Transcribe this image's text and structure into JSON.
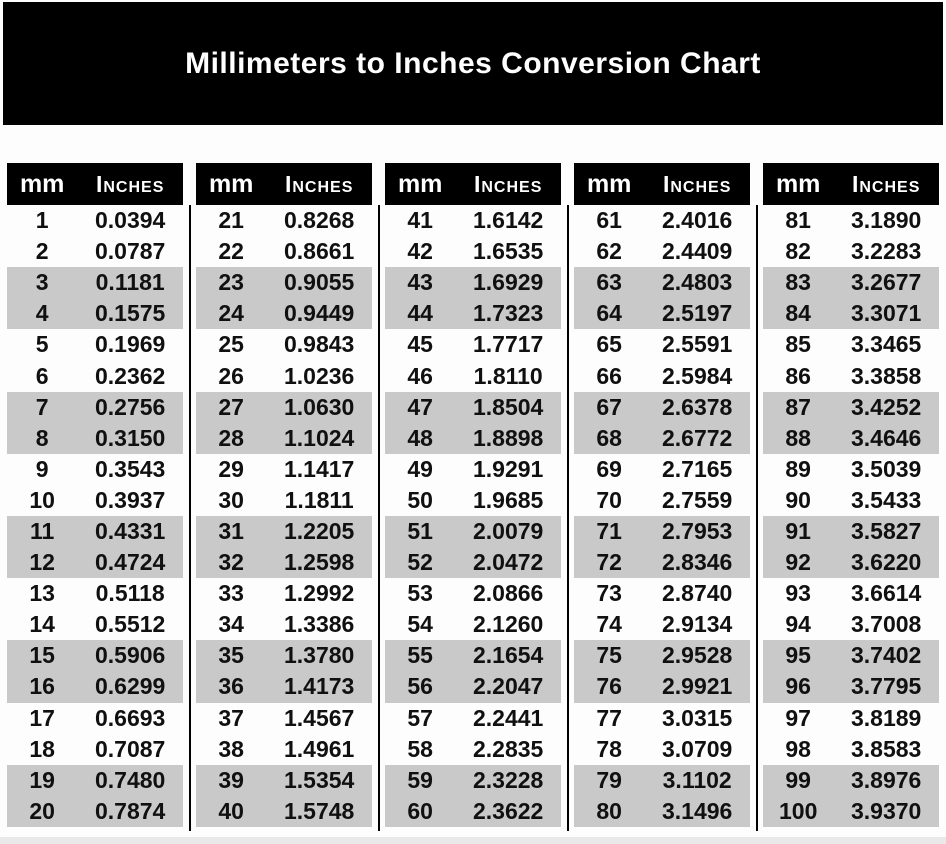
{
  "title": "Millimeters to Inches Conversion Chart",
  "headers": {
    "mm": "mm",
    "inches": "Inches"
  },
  "colors": {
    "banner_bg": "#000000",
    "header_bg": "#000000",
    "header_text": "#ffffff",
    "row_shaded": "#c9c9c9",
    "divider": "#000000",
    "value_text": "#101010"
  },
  "tables": [
    {
      "rows": [
        {
          "mm": "1",
          "in": "0.0394"
        },
        {
          "mm": "2",
          "in": "0.0787"
        },
        {
          "mm": "3",
          "in": "0.1181"
        },
        {
          "mm": "4",
          "in": "0.1575"
        },
        {
          "mm": "5",
          "in": "0.1969"
        },
        {
          "mm": "6",
          "in": "0.2362"
        },
        {
          "mm": "7",
          "in": "0.2756"
        },
        {
          "mm": "8",
          "in": "0.3150"
        },
        {
          "mm": "9",
          "in": "0.3543"
        },
        {
          "mm": "10",
          "in": "0.3937"
        },
        {
          "mm": "11",
          "in": "0.4331"
        },
        {
          "mm": "12",
          "in": "0.4724"
        },
        {
          "mm": "13",
          "in": "0.5118"
        },
        {
          "mm": "14",
          "in": "0.5512"
        },
        {
          "mm": "15",
          "in": "0.5906"
        },
        {
          "mm": "16",
          "in": "0.6299"
        },
        {
          "mm": "17",
          "in": "0.6693"
        },
        {
          "mm": "18",
          "in": "0.7087"
        },
        {
          "mm": "19",
          "in": "0.7480"
        },
        {
          "mm": "20",
          "in": "0.7874"
        }
      ]
    },
    {
      "rows": [
        {
          "mm": "21",
          "in": "0.8268"
        },
        {
          "mm": "22",
          "in": "0.8661"
        },
        {
          "mm": "23",
          "in": "0.9055"
        },
        {
          "mm": "24",
          "in": "0.9449"
        },
        {
          "mm": "25",
          "in": "0.9843"
        },
        {
          "mm": "26",
          "in": "1.0236"
        },
        {
          "mm": "27",
          "in": "1.0630"
        },
        {
          "mm": "28",
          "in": "1.1024"
        },
        {
          "mm": "29",
          "in": "1.1417"
        },
        {
          "mm": "30",
          "in": "1.1811"
        },
        {
          "mm": "31",
          "in": "1.2205"
        },
        {
          "mm": "32",
          "in": "1.2598"
        },
        {
          "mm": "33",
          "in": "1.2992"
        },
        {
          "mm": "34",
          "in": "1.3386"
        },
        {
          "mm": "35",
          "in": "1.3780"
        },
        {
          "mm": "36",
          "in": "1.4173"
        },
        {
          "mm": "37",
          "in": "1.4567"
        },
        {
          "mm": "38",
          "in": "1.4961"
        },
        {
          "mm": "39",
          "in": "1.5354"
        },
        {
          "mm": "40",
          "in": "1.5748"
        }
      ]
    },
    {
      "rows": [
        {
          "mm": "41",
          "in": "1.6142"
        },
        {
          "mm": "42",
          "in": "1.6535"
        },
        {
          "mm": "43",
          "in": "1.6929"
        },
        {
          "mm": "44",
          "in": "1.7323"
        },
        {
          "mm": "45",
          "in": "1.7717"
        },
        {
          "mm": "46",
          "in": "1.8110"
        },
        {
          "mm": "47",
          "in": "1.8504"
        },
        {
          "mm": "48",
          "in": "1.8898"
        },
        {
          "mm": "49",
          "in": "1.9291"
        },
        {
          "mm": "50",
          "in": "1.9685"
        },
        {
          "mm": "51",
          "in": "2.0079"
        },
        {
          "mm": "52",
          "in": "2.0472"
        },
        {
          "mm": "53",
          "in": "2.0866"
        },
        {
          "mm": "54",
          "in": "2.1260"
        },
        {
          "mm": "55",
          "in": "2.1654"
        },
        {
          "mm": "56",
          "in": "2.2047"
        },
        {
          "mm": "57",
          "in": "2.2441"
        },
        {
          "mm": "58",
          "in": "2.2835"
        },
        {
          "mm": "59",
          "in": "2.3228"
        },
        {
          "mm": "60",
          "in": "2.3622"
        }
      ]
    },
    {
      "rows": [
        {
          "mm": "61",
          "in": "2.4016"
        },
        {
          "mm": "62",
          "in": "2.4409"
        },
        {
          "mm": "63",
          "in": "2.4803"
        },
        {
          "mm": "64",
          "in": "2.5197"
        },
        {
          "mm": "65",
          "in": "2.5591"
        },
        {
          "mm": "66",
          "in": "2.5984"
        },
        {
          "mm": "67",
          "in": "2.6378"
        },
        {
          "mm": "68",
          "in": "2.6772"
        },
        {
          "mm": "69",
          "in": "2.7165"
        },
        {
          "mm": "70",
          "in": "2.7559"
        },
        {
          "mm": "71",
          "in": "2.7953"
        },
        {
          "mm": "72",
          "in": "2.8346"
        },
        {
          "mm": "73",
          "in": "2.8740"
        },
        {
          "mm": "74",
          "in": "2.9134"
        },
        {
          "mm": "75",
          "in": "2.9528"
        },
        {
          "mm": "76",
          "in": "2.9921"
        },
        {
          "mm": "77",
          "in": "3.0315"
        },
        {
          "mm": "78",
          "in": "3.0709"
        },
        {
          "mm": "79",
          "in": "3.1102"
        },
        {
          "mm": "80",
          "in": "3.1496"
        }
      ]
    },
    {
      "rows": [
        {
          "mm": "81",
          "in": "3.1890"
        },
        {
          "mm": "82",
          "in": "3.2283"
        },
        {
          "mm": "83",
          "in": "3.2677"
        },
        {
          "mm": "84",
          "in": "3.3071"
        },
        {
          "mm": "85",
          "in": "3.3465"
        },
        {
          "mm": "86",
          "in": "3.3858"
        },
        {
          "mm": "87",
          "in": "3.4252"
        },
        {
          "mm": "88",
          "in": "3.4646"
        },
        {
          "mm": "89",
          "in": "3.5039"
        },
        {
          "mm": "90",
          "in": "3.5433"
        },
        {
          "mm": "91",
          "in": "3.5827"
        },
        {
          "mm": "92",
          "in": "3.6220"
        },
        {
          "mm": "93",
          "in": "3.6614"
        },
        {
          "mm": "94",
          "in": "3.7008"
        },
        {
          "mm": "95",
          "in": "3.7402"
        },
        {
          "mm": "96",
          "in": "3.7795"
        },
        {
          "mm": "97",
          "in": "3.8189"
        },
        {
          "mm": "98",
          "in": "3.8583"
        },
        {
          "mm": "99",
          "in": "3.8976"
        },
        {
          "mm": "100",
          "in": "3.9370"
        }
      ]
    }
  ]
}
